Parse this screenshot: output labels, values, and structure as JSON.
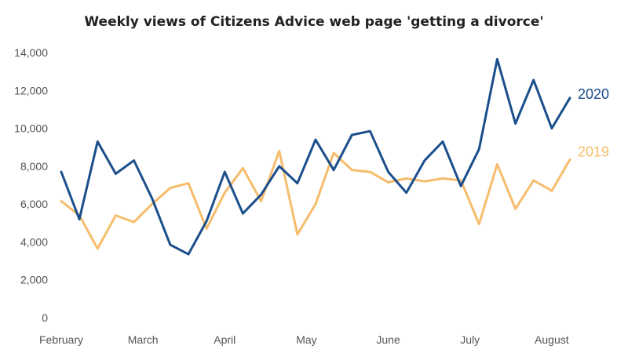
{
  "chart_data": {
    "type": "line",
    "title": "Weekly views of Citizens Advice web page 'getting a divorce'",
    "xlabel": "",
    "ylabel": "",
    "ylim": [
      0,
      14000
    ],
    "yticks": [
      "0",
      "2,000",
      "4,000",
      "6,000",
      "8,000",
      "10,000",
      "12,000",
      "14,000"
    ],
    "ytick_values": [
      0,
      2000,
      4000,
      6000,
      8000,
      10000,
      12000,
      14000
    ],
    "x_month_labels": [
      {
        "label": "February",
        "week": 1
      },
      {
        "label": "March",
        "week": 5.5
      },
      {
        "label": "April",
        "week": 10
      },
      {
        "label": "May",
        "week": 14.5
      },
      {
        "label": "June",
        "week": 19
      },
      {
        "label": "July",
        "week": 23.5
      },
      {
        "label": "August",
        "week": 28
      }
    ],
    "grid": false,
    "legend": "inline labels at right end of lines",
    "series": [
      {
        "name": "2020",
        "color": "#1b4f8c",
        "values": [
          7700,
          5200,
          9300,
          7600,
          8300,
          6300,
          3850,
          3350,
          5100,
          7700,
          5500,
          6500,
          8000,
          7100,
          9400,
          7800,
          9650,
          9850,
          7700,
          6600,
          8300,
          9300,
          6950,
          8900,
          13650,
          10250,
          12550,
          10000,
          11600
        ]
      },
      {
        "name": "2019",
        "color": "#f5bd6c",
        "values": [
          6150,
          5400,
          3650,
          5400,
          5050,
          6000,
          6850,
          7100,
          4700,
          6600,
          7900,
          6150,
          8800,
          4400,
          6000,
          8700,
          7800,
          7700,
          7150,
          7350,
          7200,
          7350,
          7250,
          4950,
          8100,
          5750,
          7250,
          6700,
          8350
        ]
      }
    ]
  },
  "colors": {
    "axis_text": "#555555",
    "title_text": "#222222"
  }
}
